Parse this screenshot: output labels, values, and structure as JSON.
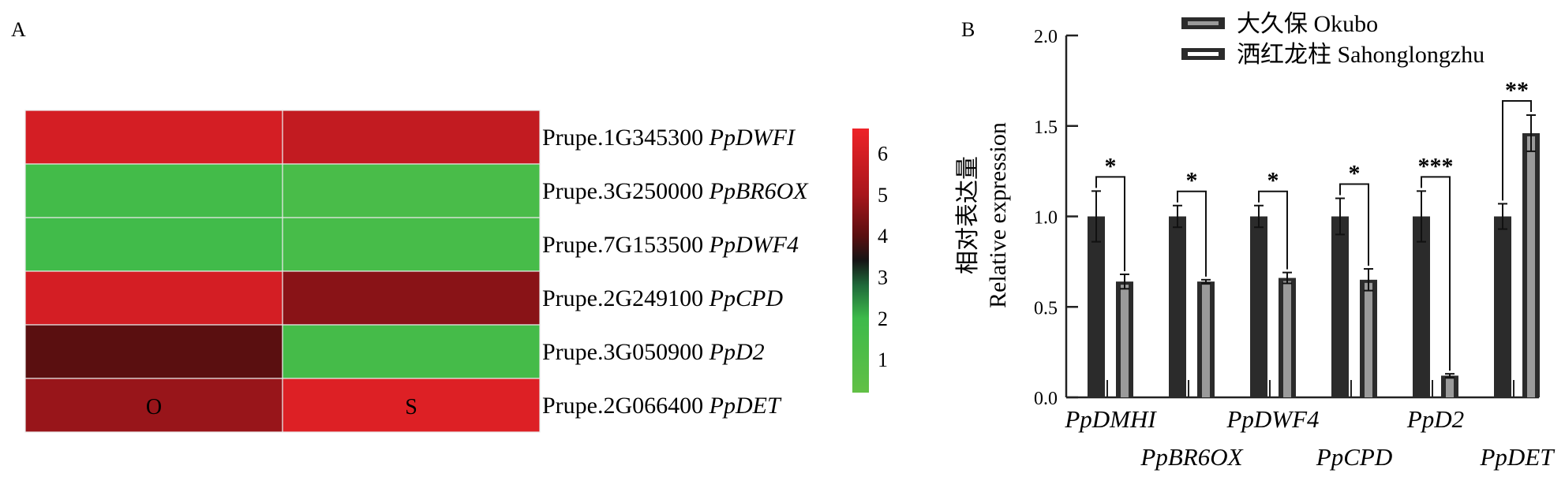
{
  "chart_data": [
    {
      "type": "heatmap",
      "panel_label": "A",
      "columns": [
        "O",
        "S"
      ],
      "rows": [
        {
          "id": "Prupe.1G345300",
          "gene": "PpDWFI",
          "values": [
            6.0,
            5.6
          ]
        },
        {
          "id": "Prupe.3G250000",
          "gene": "PpBR6OX",
          "values": [
            1.7,
            1.4
          ]
        },
        {
          "id": "Prupe.7G153500",
          "gene": "PpDWF4",
          "values": [
            1.8,
            1.5
          ]
        },
        {
          "id": "Prupe.2G249100",
          "gene": "PpCPD",
          "values": [
            6.0,
            4.6
          ]
        },
        {
          "id": "Prupe.3G050900",
          "gene": "PpD2",
          "values": [
            4.0,
            1.6
          ]
        },
        {
          "id": "Prupe.2G066400",
          "gene": "PpDET",
          "values": [
            4.8,
            6.2
          ]
        }
      ],
      "colorbar": {
        "ticks": [
          6,
          5,
          4,
          3,
          2,
          1
        ],
        "range": [
          0.2,
          6.6
        ],
        "stops": [
          {
            "v": 0.2,
            "color": "#62c046"
          },
          {
            "v": 2.0,
            "color": "#3dba4a"
          },
          {
            "v": 2.8,
            "color": "#1f6a3a"
          },
          {
            "v": 3.4,
            "color": "#151515"
          },
          {
            "v": 4.0,
            "color": "#5a0f10"
          },
          {
            "v": 5.0,
            "color": "#a8161c"
          },
          {
            "v": 6.6,
            "color": "#ee2328"
          }
        ]
      }
    },
    {
      "type": "bar",
      "panel_label": "B",
      "categories": [
        "PpDMHI",
        "PpBR6OX",
        "PpDWF4",
        "PpCPD",
        "PpD2",
        "PpDET"
      ],
      "series": [
        {
          "name": "大久保 Okubo",
          "values": [
            1.0,
            1.0,
            1.0,
            1.0,
            1.0,
            1.0
          ],
          "errors": [
            0.14,
            0.06,
            0.06,
            0.1,
            0.14,
            0.07
          ],
          "color": "#2b2b2b"
        },
        {
          "name": "洒红龙柱 Sahonglongzhu",
          "values": [
            0.64,
            0.64,
            0.66,
            0.65,
            0.12,
            1.46
          ],
          "errors": [
            0.04,
            0.01,
            0.03,
            0.06,
            0.01,
            0.1
          ],
          "color": "#9a9a9a"
        }
      ],
      "significance": [
        "*",
        "*",
        "*",
        "*",
        "***",
        "**"
      ],
      "ylabel_cn": "相对表达量",
      "ylabel_en": "Relative expression",
      "ylim": [
        0,
        2.0
      ],
      "yticks": [
        "0.0",
        "0.5",
        "1.0",
        "1.5",
        "2.0"
      ],
      "legend_position": "top"
    }
  ]
}
